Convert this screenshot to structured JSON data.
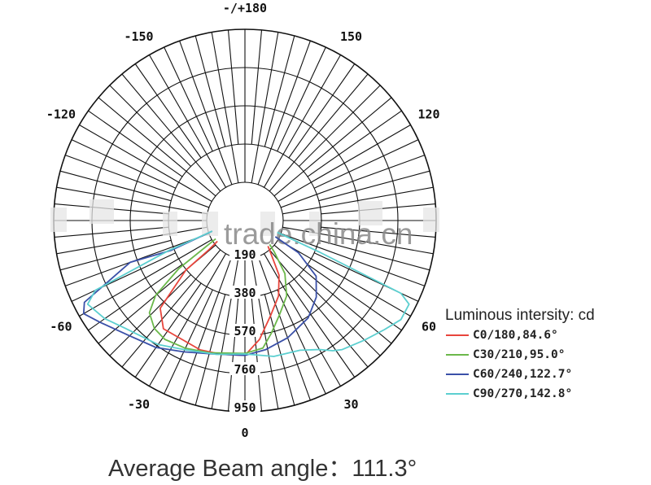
{
  "chart_data": {
    "type": "polar",
    "unit_label": "Luminous intersity: cd",
    "radial_ticks": [
      "190",
      "380",
      "570",
      "760",
      "950"
    ],
    "radial_values": [
      190,
      380,
      570,
      760,
      950
    ],
    "rlim": [
      0,
      950
    ],
    "angle_labels": [
      {
        "angle": 0,
        "text": "0"
      },
      {
        "angle": -30,
        "text": "-30"
      },
      {
        "angle": 30,
        "text": "30"
      },
      {
        "angle": -60,
        "text": "-60"
      },
      {
        "angle": 60,
        "text": "60"
      },
      {
        "angle": -120,
        "text": "-120"
      },
      {
        "angle": 120,
        "text": "120"
      },
      {
        "angle": -150,
        "text": "-150"
      },
      {
        "angle": 150,
        "text": "150"
      },
      {
        "angle": 180,
        "text": "-/+180"
      }
    ],
    "grid": true,
    "legend_position": "right",
    "series": [
      {
        "name": "C0/180,84.6°",
        "color": "#e8453c",
        "points": [
          [
            -53,
            0
          ],
          [
            -51,
            230
          ],
          [
            -50,
            383
          ],
          [
            -44,
            606
          ],
          [
            -37,
            673
          ],
          [
            -19,
            680
          ],
          [
            -10,
            675
          ],
          [
            0,
            670
          ],
          [
            7,
            595
          ],
          [
            15,
            490
          ],
          [
            24,
            410
          ],
          [
            32,
            320
          ],
          [
            39,
            200
          ],
          [
            42,
            0
          ]
        ]
      },
      {
        "name": "C30/210,95.0°",
        "color": "#6bb84a",
        "points": [
          [
            -58,
            0
          ],
          [
            -54,
            405
          ],
          [
            -50,
            580
          ],
          [
            -46,
            660
          ],
          [
            -40,
            700
          ],
          [
            -34,
            712
          ],
          [
            -25,
            700
          ],
          [
            -15,
            680
          ],
          [
            0,
            660
          ],
          [
            8,
            640
          ],
          [
            13,
            577
          ],
          [
            20,
            500
          ],
          [
            29,
            428
          ],
          [
            37,
            330
          ],
          [
            43,
            214
          ],
          [
            46,
            0
          ]
        ]
      },
      {
        "name": "C60/240,122.7°",
        "color": "#3a50a8",
        "points": [
          [
            -72,
            0
          ],
          [
            -68,
            395
          ],
          [
            -70,
            607
          ],
          [
            -63,
            895
          ],
          [
            -60,
            925
          ],
          [
            -55,
            880
          ],
          [
            -45,
            810
          ],
          [
            -35,
            770
          ],
          [
            -25,
            720
          ],
          [
            -14,
            683
          ],
          [
            0,
            670
          ],
          [
            9,
            650
          ],
          [
            20,
            620
          ],
          [
            33,
            577
          ],
          [
            43,
            520
          ],
          [
            52,
            449
          ],
          [
            59,
            310
          ],
          [
            62,
            0
          ]
        ]
      },
      {
        "name": "C90/270,142.8°",
        "color": "#5ccfd0",
        "points": [
          [
            -72,
            0
          ],
          [
            -68.5,
            409
          ],
          [
            -65,
            820
          ],
          [
            -62,
            885
          ],
          [
            -55,
            850
          ],
          [
            -48,
            800
          ],
          [
            -35,
            752
          ],
          [
            -25,
            708
          ],
          [
            -12,
            680
          ],
          [
            0,
            663
          ],
          [
            12,
            690
          ],
          [
            23,
            700
          ],
          [
            30,
            740
          ],
          [
            34,
            780
          ],
          [
            37,
            803
          ],
          [
            45,
            840
          ],
          [
            52,
            880
          ],
          [
            57.6,
            918
          ],
          [
            63,
            915
          ],
          [
            65,
            855
          ],
          [
            67,
            404
          ],
          [
            70,
            0
          ]
        ]
      }
    ]
  },
  "watermark": "trade.china.cn",
  "footer": "Average Beam angle：111.3°"
}
